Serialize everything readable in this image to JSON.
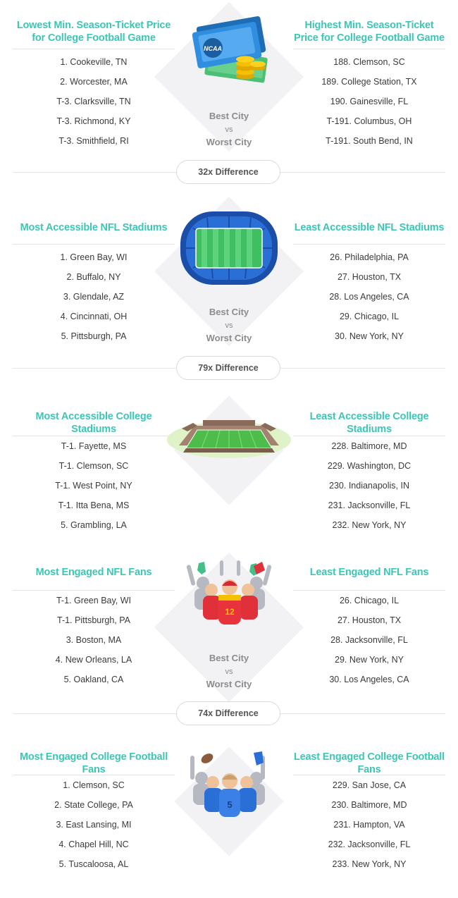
{
  "sections": [
    {
      "left_heading": "Lowest Min. Season-Ticket Price for College Football Game",
      "right_heading": "Highest Min. Season-Ticket Price for College Football Game",
      "left_items": [
        "1. Cookeville, TN",
        "2. Worcester, MA",
        "T-3. Clarksville, TN",
        "T-3. Richmond, KY",
        "T-3. Smithfield, RI"
      ],
      "right_items": [
        "188. Clemson, SC",
        "189. College Station, TX",
        "190. Gainesville, FL",
        "T-191. Columbus, OH",
        "T-191. South Bend, IN"
      ],
      "best": "Best City",
      "vs": "vs",
      "worst": "Worst City",
      "difference": "32x Difference",
      "icon": "ncaa-tickets-icon",
      "icon_text": "NCAA"
    },
    {
      "left_heading": "Most Accessible NFL Stadiums",
      "right_heading": "Least Accessible NFL Stadiums",
      "left_items": [
        "1. Green Bay, WI",
        "2. Buffalo, NY",
        "3. Glendale, AZ",
        "4. Cincinnati, OH",
        "5. Pittsburgh, PA"
      ],
      "right_items": [
        "26. Philadelphia, PA",
        "27. Houston, TX",
        "28. Los Angeles, CA",
        "29. Chicago, IL",
        "30. New York, NY"
      ],
      "best": "Best City",
      "vs": "vs",
      "worst": "Worst City",
      "difference": "79x Difference",
      "icon": "nfl-stadium-icon"
    },
    {
      "left_heading": "Most Accessible College Stadiums",
      "right_heading": "Least Accessible College Stadiums",
      "left_items": [
        "T-1. Fayette, MS",
        "T-1. Clemson, SC",
        "T-1. West Point, NY",
        "T-1. Itta Bena, MS",
        "5. Grambling, LA"
      ],
      "right_items": [
        "228. Baltimore, MD",
        "229. Washington, DC",
        "230. Indianapolis, IN",
        "231. Jacksonville, FL",
        "232. New York, NY"
      ],
      "icon": "college-stadium-icon"
    },
    {
      "left_heading": "Most Engaged NFL Fans",
      "right_heading": "Least Engaged NFL Fans",
      "left_items": [
        "T-1. Green Bay, WI",
        "T-1. Pittsburgh, PA",
        "3. Boston, MA",
        "4. New Orleans, LA",
        "5. Oakland, CA"
      ],
      "right_items": [
        "26. Chicago, IL",
        "27. Houston, TX",
        "28. Jacksonville, FL",
        "29. New York, NY",
        "30. Los Angeles, CA"
      ],
      "best": "Best City",
      "vs": "vs",
      "worst": "Worst City",
      "difference": "74x Difference",
      "icon": "nfl-fans-icon",
      "jersey_number": "12"
    },
    {
      "left_heading": "Most Engaged College Football Fans",
      "right_heading": "Least Engaged College Football Fans",
      "left_items": [
        "1. Clemson, SC",
        "2. State College, PA",
        "3. East Lansing, MI",
        "4. Chapel Hill, NC",
        "5. Tuscaloosa, AL"
      ],
      "right_items": [
        "229. San Jose, CA",
        "230. Baltimore, MD",
        "231. Hampton, VA",
        "232. Jacksonville, FL",
        "233. New York, NY"
      ],
      "icon": "college-fans-icon",
      "jersey_number": "5"
    }
  ]
}
